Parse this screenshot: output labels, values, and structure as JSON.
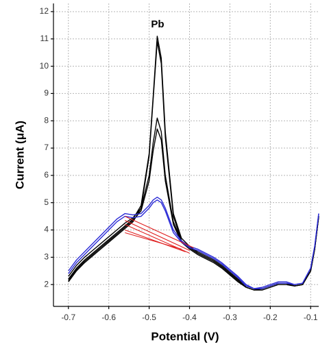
{
  "chart_data": {
    "type": "line",
    "x_label": "Potential (V)",
    "y_label": "Current (μA)",
    "annotation": "Pb",
    "xlim": [
      -0.737,
      -0.08
    ],
    "ylim": [
      1.2,
      12.3
    ],
    "xticks": [
      -0.7,
      -0.6,
      -0.5,
      -0.4,
      -0.3,
      -0.2,
      -0.1
    ],
    "yticks": [
      2,
      3,
      4,
      5,
      6,
      7,
      8,
      9,
      10,
      11,
      12
    ],
    "grid": true,
    "x": [
      -0.7,
      -0.68,
      -0.66,
      -0.64,
      -0.62,
      -0.6,
      -0.58,
      -0.56,
      -0.54,
      -0.52,
      -0.5,
      -0.49,
      -0.48,
      -0.47,
      -0.46,
      -0.44,
      -0.42,
      -0.4,
      -0.38,
      -0.36,
      -0.34,
      -0.32,
      -0.3,
      -0.28,
      -0.26,
      -0.24,
      -0.22,
      -0.2,
      -0.18,
      -0.16,
      -0.14,
      -0.12,
      -0.1,
      -0.09,
      -0.08
    ],
    "series": [
      {
        "color": "#000000",
        "values": [
          2.2,
          2.6,
          2.9,
          3.15,
          3.4,
          3.65,
          3.9,
          4.15,
          4.4,
          4.9,
          6.8,
          8.9,
          11.1,
          10.3,
          7.6,
          4.6,
          3.7,
          3.4,
          3.2,
          3.05,
          2.9,
          2.7,
          2.45,
          2.2,
          1.95,
          1.85,
          1.85,
          1.95,
          2.05,
          2.05,
          1.95,
          2.0,
          2.5,
          3.3,
          4.5
        ]
      },
      {
        "color": "#000000",
        "values": [
          2.1,
          2.5,
          2.8,
          3.05,
          3.3,
          3.55,
          3.8,
          4.05,
          4.3,
          4.8,
          6.7,
          8.8,
          10.9,
          10.1,
          7.4,
          4.5,
          3.6,
          3.35,
          3.15,
          3.0,
          2.85,
          2.65,
          2.4,
          2.15,
          1.9,
          1.8,
          1.8,
          1.9,
          2.0,
          2.0,
          1.95,
          2.0,
          2.5,
          3.3,
          4.5
        ]
      },
      {
        "color": "#000000",
        "values": [
          2.3,
          2.7,
          3.0,
          3.25,
          3.5,
          3.75,
          4.0,
          4.25,
          4.45,
          4.8,
          6.0,
          7.2,
          8.1,
          7.6,
          6.0,
          4.3,
          3.6,
          3.35,
          3.15,
          3.0,
          2.85,
          2.65,
          2.4,
          2.15,
          1.9,
          1.8,
          1.85,
          1.95,
          2.05,
          2.05,
          1.95,
          2.0,
          2.5,
          3.3,
          4.5
        ]
      },
      {
        "color": "#000000",
        "values": [
          2.15,
          2.55,
          2.85,
          3.1,
          3.35,
          3.6,
          3.85,
          4.1,
          4.35,
          4.7,
          5.8,
          6.9,
          7.7,
          7.3,
          5.8,
          4.2,
          3.55,
          3.3,
          3.1,
          2.95,
          2.8,
          2.6,
          2.35,
          2.1,
          1.9,
          1.8,
          1.8,
          1.9,
          2.0,
          2.0,
          1.95,
          2.0,
          2.5,
          3.3,
          4.5
        ]
      },
      {
        "color": "#2b2bd6",
        "values": [
          2.5,
          2.9,
          3.2,
          3.5,
          3.8,
          4.1,
          4.4,
          4.6,
          4.55,
          4.6,
          4.9,
          5.1,
          5.2,
          5.1,
          4.8,
          4.0,
          3.6,
          3.4,
          3.3,
          3.15,
          3.0,
          2.8,
          2.55,
          2.3,
          2.0,
          1.85,
          1.9,
          2.0,
          2.1,
          2.1,
          2.0,
          2.05,
          2.6,
          3.4,
          4.6
        ]
      },
      {
        "color": "#2b2bd6",
        "values": [
          2.4,
          2.8,
          3.1,
          3.4,
          3.7,
          4.0,
          4.3,
          4.5,
          4.45,
          4.5,
          4.8,
          5.0,
          5.1,
          5.0,
          4.7,
          3.9,
          3.55,
          3.35,
          3.25,
          3.1,
          2.95,
          2.75,
          2.5,
          2.25,
          1.95,
          1.85,
          1.85,
          1.95,
          2.05,
          2.05,
          2.0,
          2.05,
          2.6,
          3.4,
          4.6
        ]
      }
    ],
    "baselines": [
      {
        "color": "#e02020",
        "x": [
          -0.56,
          -0.39
        ],
        "values": [
          4.5,
          3.35
        ]
      },
      {
        "color": "#e02020",
        "x": [
          -0.56,
          -0.4
        ],
        "values": [
          4.35,
          3.25
        ]
      },
      {
        "color": "#e02020",
        "x": [
          -0.56,
          -0.4
        ],
        "values": [
          4.2,
          3.15
        ]
      },
      {
        "color": "#e02020",
        "x": [
          -0.56,
          -0.41
        ],
        "values": [
          4.0,
          3.2
        ]
      },
      {
        "color": "#e02020",
        "x": [
          -0.56,
          -0.42
        ],
        "values": [
          3.9,
          3.3
        ]
      }
    ]
  }
}
